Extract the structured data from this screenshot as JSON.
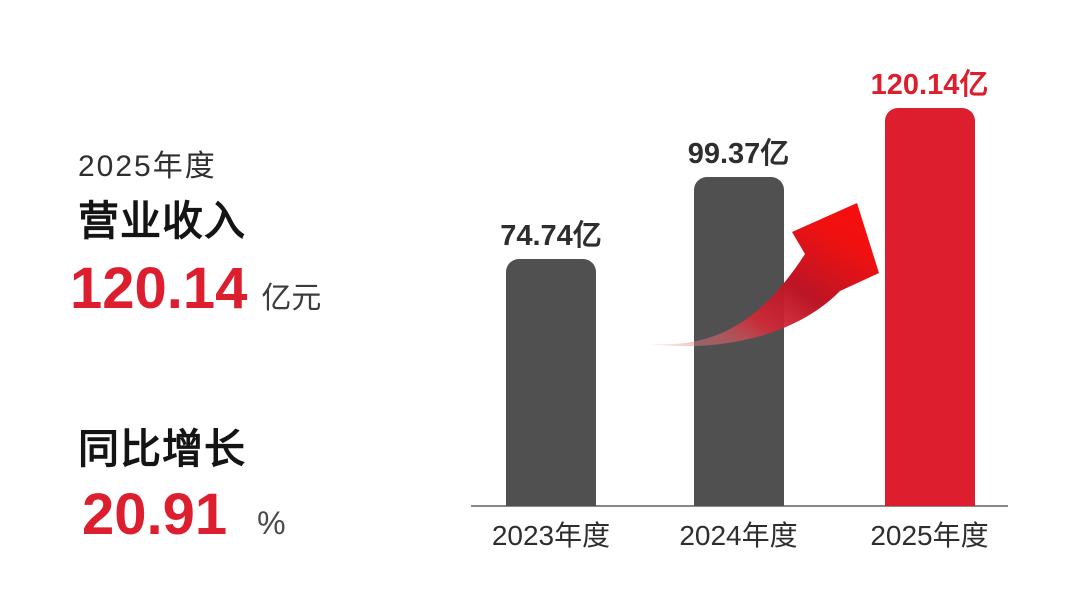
{
  "page": {
    "background": "#ffffff"
  },
  "colors": {
    "accent_red": "#DC1E2E",
    "bar_gray": "#505050",
    "axis_gray": "#888888",
    "text_dark": "#2e2e2e"
  },
  "kpi_panel": {
    "period": "2025年度",
    "revenue_label": "营业收入",
    "revenue_value": "120.14",
    "revenue_unit": "亿元",
    "growth_label": "同比增长",
    "growth_value": "20.91",
    "growth_unit": "%"
  },
  "chart_data": {
    "type": "bar",
    "categories": [
      "2023年度",
      "2024年度",
      "2025年度"
    ],
    "values": [
      74.74,
      99.37,
      120.14
    ],
    "data_labels": [
      "74.74亿",
      "99.37亿",
      "120.14亿"
    ],
    "unit": "亿",
    "bar_color": "#505050",
    "highlight_index": 2,
    "highlight_color": "#DC1E2E",
    "ylim": [
      0,
      130
    ],
    "grid": false,
    "legend": false,
    "annotations": [
      {
        "type": "curved-arrow",
        "color": "#EE1111",
        "meaning": "growth from 2024年度 to 2025年度"
      }
    ]
  }
}
